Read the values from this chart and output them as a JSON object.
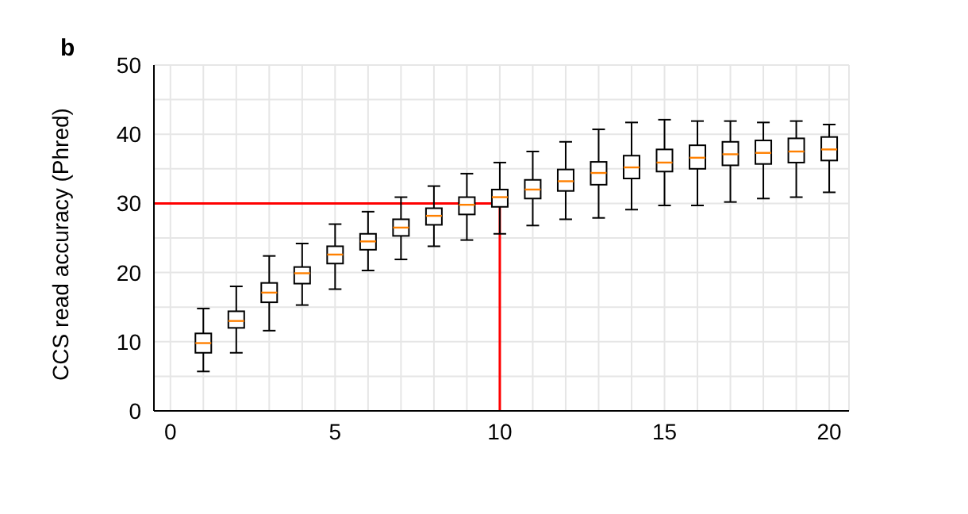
{
  "chart_data": {
    "type": "box",
    "annotations": [
      "b"
    ],
    "ylabel": "CCS read accuracy (Phred)",
    "x": [
      1,
      2,
      3,
      4,
      5,
      6,
      7,
      8,
      9,
      10,
      11,
      12,
      13,
      14,
      15,
      16,
      17,
      18,
      19,
      20
    ],
    "color": "#000000",
    "boxes": [
      {
        "low": 5.7,
        "q1": 8.4,
        "median": 9.8,
        "q3": 11.2,
        "high": 14.8
      },
      {
        "low": 8.4,
        "q1": 12.0,
        "median": 13.0,
        "q3": 14.4,
        "high": 18.0
      },
      {
        "low": 11.6,
        "q1": 15.7,
        "median": 17.1,
        "q3": 18.5,
        "high": 22.4
      },
      {
        "low": 15.3,
        "q1": 18.4,
        "median": 19.9,
        "q3": 20.8,
        "high": 24.2
      },
      {
        "low": 17.6,
        "q1": 21.3,
        "median": 22.6,
        "q3": 23.8,
        "high": 27.0
      },
      {
        "low": 20.3,
        "q1": 23.3,
        "median": 24.5,
        "q3": 25.6,
        "high": 28.8
      },
      {
        "low": 21.9,
        "q1": 25.3,
        "median": 26.5,
        "q3": 27.7,
        "high": 30.9
      },
      {
        "low": 23.8,
        "q1": 26.9,
        "median": 28.2,
        "q3": 29.3,
        "high": 32.5
      },
      {
        "low": 24.7,
        "q1": 28.4,
        "median": 29.8,
        "q3": 30.9,
        "high": 34.3
      },
      {
        "low": 25.6,
        "q1": 29.5,
        "median": 30.9,
        "q3": 32.0,
        "high": 35.9
      },
      {
        "low": 26.8,
        "q1": 30.7,
        "median": 32.0,
        "q3": 33.4,
        "high": 37.5
      },
      {
        "low": 27.7,
        "q1": 31.8,
        "median": 33.2,
        "q3": 34.9,
        "high": 38.9
      },
      {
        "low": 27.9,
        "q1": 32.7,
        "median": 34.4,
        "q3": 36.0,
        "high": 40.7
      },
      {
        "low": 29.1,
        "q1": 33.6,
        "median": 35.2,
        "q3": 36.9,
        "high": 41.7
      },
      {
        "low": 29.7,
        "q1": 34.6,
        "median": 35.9,
        "q3": 37.8,
        "high": 42.1
      },
      {
        "low": 29.7,
        "q1": 35.0,
        "median": 36.6,
        "q3": 38.4,
        "high": 41.9
      },
      {
        "low": 30.2,
        "q1": 35.5,
        "median": 37.1,
        "q3": 38.9,
        "high": 41.9
      },
      {
        "low": 30.7,
        "q1": 35.7,
        "median": 37.3,
        "q3": 39.1,
        "high": 41.7
      },
      {
        "low": 30.9,
        "q1": 35.9,
        "median": 37.5,
        "q3": 39.4,
        "high": 41.9
      },
      {
        "low": 31.6,
        "q1": 36.2,
        "median": 37.8,
        "q3": 39.6,
        "high": 41.4
      }
    ],
    "xlim": [
      -0.5,
      20.6
    ],
    "xticks": [
      0,
      {
        "value": 1,
        "label": null
      },
      {
        "value": 2,
        "label": null
      },
      {
        "value": 3,
        "label": null
      },
      {
        "value": 4,
        "label": null
      },
      5,
      {
        "value": 6,
        "label": null
      },
      {
        "value": 7,
        "label": null
      },
      {
        "value": 8,
        "label": null
      },
      {
        "value": 9,
        "label": null
      },
      10,
      {
        "value": 11,
        "label": null
      },
      {
        "value": 12,
        "label": null
      },
      {
        "value": 13,
        "label": null
      },
      {
        "value": 14,
        "label": null
      },
      15,
      {
        "value": 16,
        "label": null
      },
      {
        "value": 17,
        "label": null
      },
      {
        "value": 18,
        "label": null
      },
      {
        "value": 19,
        "label": null
      },
      20
    ],
    "ylim": [
      0,
      50
    ],
    "yticks": [
      0,
      {
        "value": 5,
        "label": null
      },
      10,
      {
        "value": 15,
        "label": null
      },
      20,
      {
        "value": 25,
        "label": null
      },
      30,
      {
        "value": 35,
        "label": null
      },
      40,
      {
        "value": 45,
        "label": null
      },
      50
    ],
    "grid": true,
    "ref_lines": [
      {
        "axis": "y",
        "value": 30,
        "color": "#ff0000"
      },
      {
        "axis": "x",
        "value": 10,
        "color": "#ff0000"
      }
    ]
  }
}
